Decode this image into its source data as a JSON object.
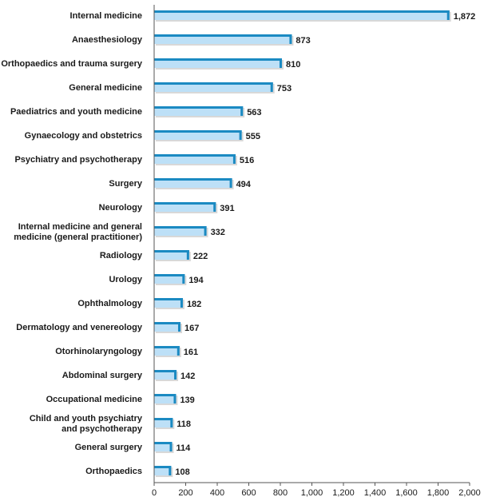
{
  "chart_data": {
    "type": "bar",
    "orientation": "horizontal",
    "title": "",
    "xlabel": "",
    "ylabel": "",
    "xlim": [
      0,
      2000
    ],
    "x_ticks": [
      "0",
      "200",
      "400",
      "600",
      "800",
      "1,000",
      "1,200",
      "1,400",
      "1,600",
      "1,800",
      "2,000"
    ],
    "grid": false,
    "colors": {
      "bar_fill": "#bde0f7",
      "bar_edge": "#1b8ac2",
      "bar_shadow": "#d8d8d8",
      "axis": "#555555"
    },
    "categories": [
      [
        "Internal medicine"
      ],
      [
        "Anaesthesiology"
      ],
      [
        "Orthopaedics and trauma surgery"
      ],
      [
        "General medicine"
      ],
      [
        "Paediatrics and youth medicine"
      ],
      [
        "Gynaecology and obstetrics"
      ],
      [
        "Psychiatry and psychotherapy"
      ],
      [
        "Surgery"
      ],
      [
        "Neurology"
      ],
      [
        "Internal medicine and general",
        "medicine (general practitioner)"
      ],
      [
        "Radiology"
      ],
      [
        "Urology"
      ],
      [
        "Ophthalmology"
      ],
      [
        "Dermatology and venereology"
      ],
      [
        "Otorhinolaryngology"
      ],
      [
        "Abdominal surgery"
      ],
      [
        "Occupational medicine"
      ],
      [
        "Child and youth psychiatry",
        "and psychotherapy"
      ],
      [
        "General surgery"
      ],
      [
        "Orthopaedics"
      ]
    ],
    "values": [
      1872,
      873,
      810,
      753,
      563,
      555,
      516,
      494,
      391,
      332,
      222,
      194,
      182,
      167,
      161,
      142,
      139,
      118,
      114,
      108
    ],
    "value_labels": [
      "1,872",
      "873",
      "810",
      "753",
      "563",
      "555",
      "516",
      "494",
      "391",
      "332",
      "222",
      "194",
      "182",
      "167",
      "161",
      "142",
      "139",
      "118",
      "114",
      "108"
    ]
  }
}
